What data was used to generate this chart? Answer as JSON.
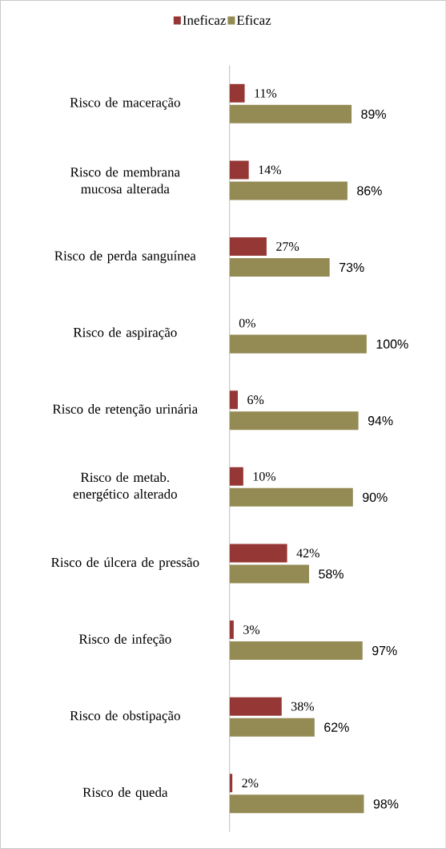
{
  "chart_data": {
    "type": "bar",
    "orientation": "horizontal",
    "categories": [
      "Risco de maceração",
      "Risco de membrana mucosa alterada",
      "Risco de perda sanguínea",
      "Risco de aspiração",
      "Risco de retenção urinária",
      "Risco de metab. energético alterado",
      "Risco de úlcera de pressão",
      "Risco de infeção",
      "Risco de obstipação",
      "Risco de queda"
    ],
    "series": [
      {
        "name": "Ineficaz",
        "color": "#953735",
        "values": [
          11,
          14,
          27,
          0,
          6,
          10,
          42,
          3,
          38,
          2
        ],
        "value_labels": [
          "11%",
          "14%",
          "27%",
          "0%",
          "6%",
          "10%",
          "42%",
          "3%",
          "38%",
          "2%"
        ]
      },
      {
        "name": "Eficaz",
        "color": "#948a54",
        "values": [
          89,
          86,
          73,
          100,
          94,
          90,
          58,
          97,
          62,
          98
        ],
        "value_labels": [
          "89%",
          "86%",
          "73%",
          "100%",
          "94%",
          "90%",
          "58%",
          "97%",
          "62%",
          "98%"
        ]
      }
    ],
    "legend": "top"
  }
}
